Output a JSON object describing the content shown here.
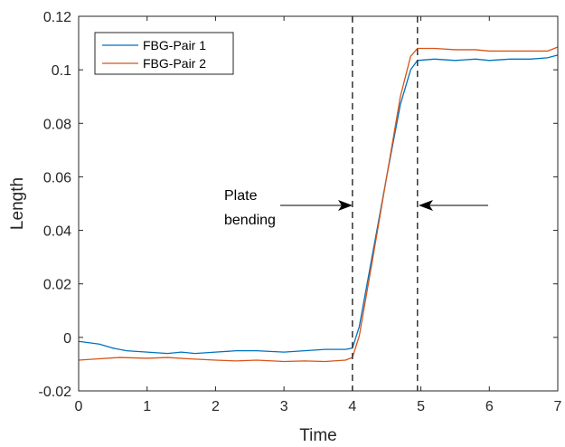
{
  "chart_data": {
    "type": "line",
    "xlabel": "Time",
    "ylabel": "Length",
    "xlim": [
      0,
      7
    ],
    "ylim": [
      -0.02,
      0.12
    ],
    "x_ticks": [
      0,
      1,
      2,
      3,
      4,
      5,
      6,
      7
    ],
    "y_ticks": [
      -0.02,
      0,
      0.02,
      0.04,
      0.06,
      0.08,
      0.1,
      0.12
    ],
    "x_tick_labels": [
      "0",
      "1",
      "2",
      "3",
      "4",
      "5",
      "6",
      "7"
    ],
    "y_tick_labels": [
      "-0.02",
      "0",
      "0.02",
      "0.04",
      "0.06",
      "0.08",
      "0.1",
      "0.12"
    ],
    "grid": false,
    "legend_position": "top-left",
    "series": [
      {
        "name": "FBG-Pair 1",
        "color": "#0072BD",
        "x": [
          0,
          0.15,
          0.3,
          0.5,
          0.7,
          1.0,
          1.3,
          1.5,
          1.7,
          2.0,
          2.3,
          2.6,
          3.0,
          3.3,
          3.6,
          3.9,
          4.0,
          4.1,
          4.3,
          4.5,
          4.7,
          4.85,
          4.95,
          5.2,
          5.5,
          5.8,
          6.0,
          6.3,
          6.6,
          6.85,
          7.0
        ],
        "y": [
          -0.0015,
          -0.002,
          -0.0025,
          -0.004,
          -0.005,
          -0.0055,
          -0.006,
          -0.0055,
          -0.006,
          -0.0055,
          -0.005,
          -0.005,
          -0.0055,
          -0.005,
          -0.0045,
          -0.0045,
          -0.004,
          0.004,
          0.032,
          0.06,
          0.087,
          0.1,
          0.1035,
          0.104,
          0.1035,
          0.104,
          0.1035,
          0.104,
          0.104,
          0.1045,
          0.1055
        ]
      },
      {
        "name": "FBG-Pair 2",
        "color": "#D95319",
        "x": [
          0,
          0.3,
          0.6,
          1.0,
          1.3,
          1.6,
          2.0,
          2.3,
          2.6,
          3.0,
          3.3,
          3.6,
          3.9,
          4.0,
          4.1,
          4.3,
          4.5,
          4.7,
          4.85,
          4.95,
          5.2,
          5.5,
          5.8,
          6.0,
          6.3,
          6.6,
          6.85,
          7.0
        ],
        "y": [
          -0.0085,
          -0.008,
          -0.0075,
          -0.0078,
          -0.0075,
          -0.008,
          -0.0085,
          -0.0088,
          -0.0085,
          -0.009,
          -0.0088,
          -0.009,
          -0.0085,
          -0.0075,
          0.0005,
          0.03,
          0.06,
          0.09,
          0.105,
          0.108,
          0.108,
          0.1075,
          0.1075,
          0.107,
          0.107,
          0.107,
          0.107,
          0.1085
        ]
      }
    ],
    "vertical_lines": [
      4.0,
      4.95
    ],
    "annotations": {
      "text_line1": "Plate",
      "text_line2": "bending"
    }
  }
}
